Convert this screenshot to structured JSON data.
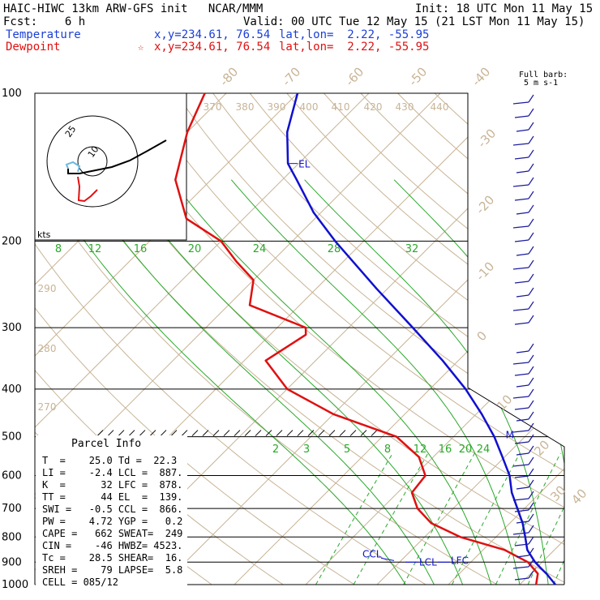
{
  "header": {
    "title_line": "HAIC-HIWC 13km ARW-GFS init   NCAR/MMM",
    "init_line": "Init: 18 UTC Mon 11 May 15",
    "fcst_line": "Fcst:    6 h",
    "valid_line": "Valid: 00 UTC Tue 12 May 15 (21 LST Mon 11 May 15)",
    "temp_label": "Temperature",
    "temp_xy": "x,y=234.61, 76.54",
    "temp_latlon": "lat,lon=  2.22, -55.95",
    "dew_label": "Dewpoint",
    "dew_marker": "☆",
    "dew_xy": "x,y=234.61, 76.54",
    "dew_latlon": "lat,lon=  2.22, -55.95"
  },
  "barb_label": [
    "Full barb:",
    "5 m s-1"
  ],
  "hodograph": {
    "units": "kts",
    "rings": [
      "10",
      "25"
    ]
  },
  "level_labels": {
    "el": "EL",
    "m": "M",
    "ccl": "CCL",
    "lcl": "LCL",
    "lfc": "LFC"
  },
  "parcel_info": {
    "title": "Parcel Info",
    "rows": [
      "T  =    25.0 Td =  22.3",
      "LI =    -2.4 LCL =  887.",
      "K  =      32 LFC =  878.",
      "TT =      44 EL  =  139.",
      "SWI =   -0.5 CCL =  866.",
      "PW =    4.72 YGP =   0.2",
      "CAPE =   662 SWEAT=  249",
      "CIN =    -46 HWBZ= 4523.",
      "Tc =    28.5 SHEAR=  16.",
      "SREH =    79 LAPSE=  5.8",
      "CELL = 085/12"
    ]
  },
  "chart_data": {
    "type": "line",
    "title": "",
    "xlabel": "",
    "ylabel": "",
    "y_scale": "log",
    "pressure_levels_hPa": [
      100,
      200,
      300,
      400,
      500,
      600,
      700,
      800,
      900,
      1000
    ],
    "pressure_tick_labels": [
      "100",
      "200",
      "300",
      "400",
      "500",
      "600",
      "700",
      "800",
      "900",
      "1000"
    ],
    "isotherm_labels_degC": [
      "-80",
      "-70",
      "-60",
      "-50",
      "-40",
      "-30",
      "-20",
      "-10",
      "0",
      "10",
      "20",
      "30",
      "40"
    ],
    "theta_labels_K": [
      "370",
      "380",
      "390",
      "400",
      "410",
      "420",
      "430",
      "440",
      "290",
      "280",
      "270"
    ],
    "moist_adiabat_labels_degC": [
      "8",
      "12",
      "16",
      "20",
      "24",
      "28",
      "32"
    ],
    "mixing_ratio_labels": [
      "2",
      "3",
      "5",
      "8",
      "12",
      "16",
      "20",
      "24"
    ],
    "series": [
      {
        "name": "Temperature",
        "color": "#1010d0",
        "points": [
          [
            1000,
            25.0
          ],
          [
            950,
            22.2
          ],
          [
            925,
            20.6
          ],
          [
            900,
            19.0
          ],
          [
            850,
            16.2
          ],
          [
            800,
            14.1
          ],
          [
            750,
            11.8
          ],
          [
            700,
            9.0
          ],
          [
            650,
            6.0
          ],
          [
            600,
            3.3
          ],
          [
            550,
            -0.3
          ],
          [
            500,
            -4.3
          ],
          [
            450,
            -9.2
          ],
          [
            400,
            -15.0
          ],
          [
            350,
            -22.2
          ],
          [
            300,
            -31.0
          ],
          [
            250,
            -41.5
          ],
          [
            200,
            -54.0
          ],
          [
            175,
            -61.0
          ],
          [
            150,
            -68.0
          ],
          [
            139,
            -71.5
          ],
          [
            120,
            -76.0
          ],
          [
            100,
            -80.0
          ]
        ]
      },
      {
        "name": "Dewpoint",
        "color": "#e01010",
        "points": [
          [
            1000,
            22.3
          ],
          [
            950,
            21.0
          ],
          [
            900,
            18.0
          ],
          [
            850,
            13.0
          ],
          [
            800,
            5.0
          ],
          [
            750,
            -1.0
          ],
          [
            700,
            -5.0
          ],
          [
            650,
            -8.0
          ],
          [
            600,
            -8.5
          ],
          [
            550,
            -12.0
          ],
          [
            500,
            -18.0
          ],
          [
            450,
            -30.0
          ],
          [
            400,
            -40.0
          ],
          [
            350,
            -47.0
          ],
          [
            310,
            -45.0
          ],
          [
            300,
            -46.0
          ],
          [
            270,
            -57.0
          ],
          [
            240,
            -60.0
          ],
          [
            220,
            -65.0
          ],
          [
            200,
            -70.0
          ],
          [
            180,
            -78.0
          ],
          [
            150,
            -85.0
          ],
          [
            120,
            -90.0
          ],
          [
            100,
            -93.0
          ]
        ]
      }
    ]
  }
}
